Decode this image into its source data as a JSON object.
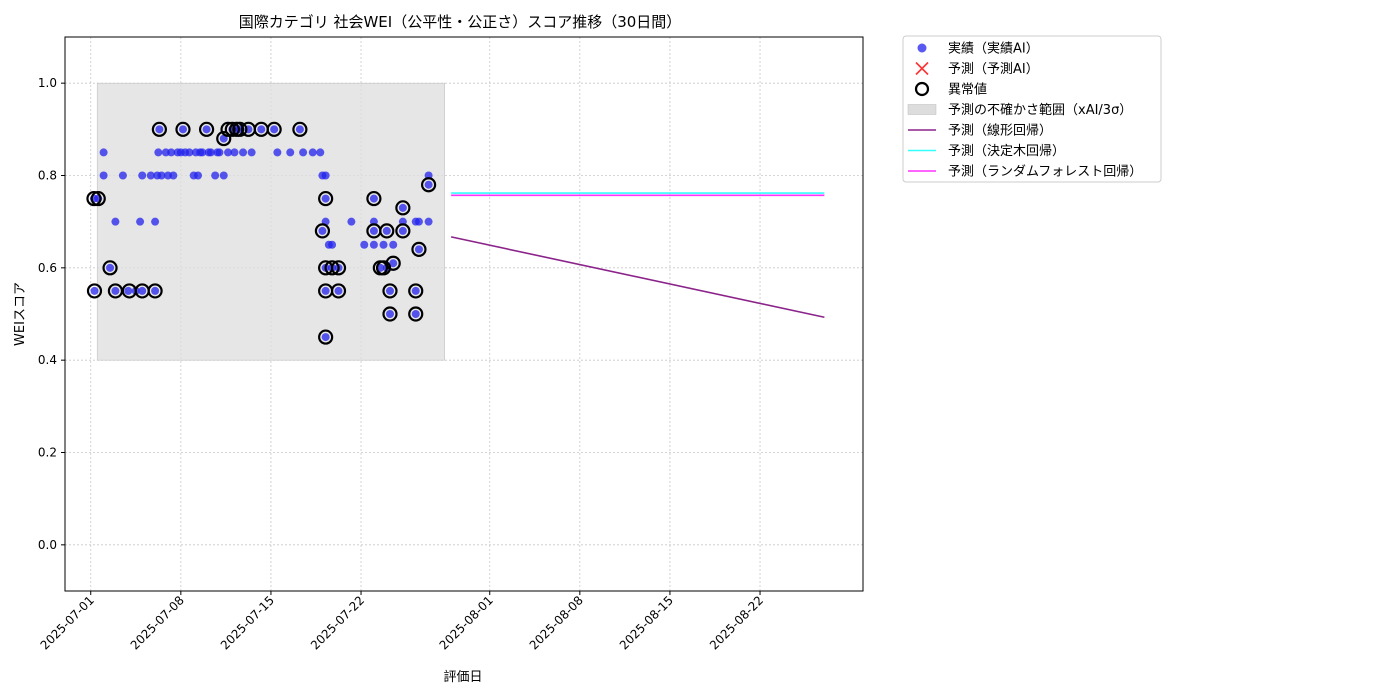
{
  "chart_data": {
    "type": "scatter",
    "title": "国際カテゴリ 社会WEI（公平性・公正さ）スコア推移（30日間）",
    "xlabel": "評価日",
    "ylabel": "WEIスコア",
    "xlim": [
      "2025-06-29",
      "2025-08-30"
    ],
    "ylim": [
      -0.1,
      1.1
    ],
    "grid": true,
    "legend_position": "outside-top-right",
    "x_ticks": [
      "2025-07-01",
      "2025-07-08",
      "2025-07-15",
      "2025-07-22",
      "2025-08-01",
      "2025-08-08",
      "2025-08-15",
      "2025-08-22"
    ],
    "y_ticks": [
      "0.0",
      "0.2",
      "0.4",
      "0.6",
      "0.8",
      "1.0"
    ],
    "uncertainty_band": {
      "x_start": "2025-07-01T12:00",
      "x_end": "2025-07-28T12:00",
      "y_low": 0.4,
      "y_high": 1.0,
      "color": "#dddddd"
    },
    "legend": [
      {
        "label": "実績（実績AI）",
        "kind": "dot",
        "color": "#2222ee"
      },
      {
        "label": "予測（予測AI）",
        "kind": "cross",
        "color": "#ff3333"
      },
      {
        "label": "異常値",
        "kind": "ring",
        "color": "#000000"
      },
      {
        "label": "予測の不確かさ範囲（xAI/3σ）",
        "kind": "band",
        "color": "#dddddd"
      },
      {
        "label": "予測（線形回帰）",
        "kind": "line",
        "color": "#8b238b"
      },
      {
        "label": "予測（決定木回帰）",
        "kind": "line",
        "color": "#33ffff"
      },
      {
        "label": "予測（ランダムフォレスト回帰）",
        "kind": "line",
        "color": "#ff33ff"
      }
    ],
    "actual_points": [
      [
        "2025-07-01T06:00",
        0.75
      ],
      [
        "2025-07-01T07:00",
        0.55
      ],
      [
        "2025-07-01T14:00",
        0.75
      ],
      [
        "2025-07-02T00:00",
        0.8
      ],
      [
        "2025-07-02T00:00",
        0.85
      ],
      [
        "2025-07-02T12:00",
        0.6
      ],
      [
        "2025-07-02T22:00",
        0.7
      ],
      [
        "2025-07-02T22:00",
        0.55
      ],
      [
        "2025-07-03T12:00",
        0.8
      ],
      [
        "2025-07-03T22:00",
        0.55
      ],
      [
        "2025-07-04T12:00",
        0.55
      ],
      [
        "2025-07-04T20:00",
        0.7
      ],
      [
        "2025-07-05T00:00",
        0.8
      ],
      [
        "2025-07-05T00:00",
        0.55
      ],
      [
        "2025-07-05T16:00",
        0.8
      ],
      [
        "2025-07-06T00:00",
        0.7
      ],
      [
        "2025-07-06T00:00",
        0.55
      ],
      [
        "2025-07-06T04:00",
        0.8
      ],
      [
        "2025-07-06T06:00",
        0.85
      ],
      [
        "2025-07-06T08:00",
        0.9
      ],
      [
        "2025-07-06T12:00",
        0.8
      ],
      [
        "2025-07-06T20:00",
        0.85
      ],
      [
        "2025-07-07T00:00",
        0.8
      ],
      [
        "2025-07-07T06:00",
        0.85
      ],
      [
        "2025-07-07T10:00",
        0.8
      ],
      [
        "2025-07-07T18:00",
        0.85
      ],
      [
        "2025-07-08T00:00",
        0.85
      ],
      [
        "2025-07-08T04:00",
        0.9
      ],
      [
        "2025-07-08T08:00",
        0.85
      ],
      [
        "2025-07-08T16:00",
        0.85
      ],
      [
        "2025-07-09T00:00",
        0.8
      ],
      [
        "2025-07-09T04:00",
        0.85
      ],
      [
        "2025-07-09T08:00",
        0.8
      ],
      [
        "2025-07-09T12:00",
        0.85
      ],
      [
        "2025-07-09T16:00",
        0.85
      ],
      [
        "2025-07-10T00:00",
        0.9
      ],
      [
        "2025-07-10T04:00",
        0.85
      ],
      [
        "2025-07-10T08:00",
        0.85
      ],
      [
        "2025-07-10T16:00",
        0.8
      ],
      [
        "2025-07-10T20:00",
        0.85
      ],
      [
        "2025-07-11T00:00",
        0.85
      ],
      [
        "2025-07-11T08:00",
        0.8
      ],
      [
        "2025-07-11T08:00",
        0.88
      ],
      [
        "2025-07-11T16:00",
        0.85
      ],
      [
        "2025-07-12T00:00",
        0.9
      ],
      [
        "2025-07-12T04:00",
        0.85
      ],
      [
        "2025-07-12T08:00",
        0.9
      ],
      [
        "2025-07-12T14:00",
        0.9
      ],
      [
        "2025-07-12T20:00",
        0.85
      ],
      [
        "2025-07-13T06:00",
        0.9
      ],
      [
        "2025-07-13T12:00",
        0.85
      ],
      [
        "2025-07-14T06:00",
        0.9
      ],
      [
        "2025-07-15T06:00",
        0.9
      ],
      [
        "2025-07-15T12:00",
        0.85
      ],
      [
        "2025-07-16T12:00",
        0.85
      ],
      [
        "2025-07-17T06:00",
        0.9
      ],
      [
        "2025-07-17T12:00",
        0.85
      ],
      [
        "2025-07-18T06:00",
        0.85
      ],
      [
        "2025-07-18T20:00",
        0.85
      ],
      [
        "2025-07-19T00:00",
        0.8
      ],
      [
        "2025-07-19T00:00",
        0.68
      ],
      [
        "2025-07-19T06:00",
        0.8
      ],
      [
        "2025-07-19T06:00",
        0.75
      ],
      [
        "2025-07-19T06:00",
        0.7
      ],
      [
        "2025-07-19T06:00",
        0.6
      ],
      [
        "2025-07-19T06:00",
        0.55
      ],
      [
        "2025-07-19T06:00",
        0.45
      ],
      [
        "2025-07-19T12:00",
        0.65
      ],
      [
        "2025-07-19T18:00",
        0.65
      ],
      [
        "2025-07-19T18:00",
        0.6
      ],
      [
        "2025-07-20T06:00",
        0.6
      ],
      [
        "2025-07-20T06:00",
        0.55
      ],
      [
        "2025-07-21T06:00",
        0.7
      ],
      [
        "2025-07-22T06:00",
        0.65
      ],
      [
        "2025-07-23T00:00",
        0.75
      ],
      [
        "2025-07-23T00:00",
        0.7
      ],
      [
        "2025-07-23T00:00",
        0.68
      ],
      [
        "2025-07-23T00:00",
        0.65
      ],
      [
        "2025-07-23T12:00",
        0.6
      ],
      [
        "2025-07-23T18:00",
        0.65
      ],
      [
        "2025-07-24T00:00",
        0.68
      ],
      [
        "2025-07-24T00:00",
        0.6
      ],
      [
        "2025-07-24T06:00",
        0.55
      ],
      [
        "2025-07-24T06:00",
        0.5
      ],
      [
        "2025-07-24T12:00",
        0.65
      ],
      [
        "2025-07-24T12:00",
        0.61
      ],
      [
        "2025-07-25T06:00",
        0.7
      ],
      [
        "2025-07-25T06:00",
        0.73
      ],
      [
        "2025-07-25T06:00",
        0.68
      ],
      [
        "2025-07-26T06:00",
        0.7
      ],
      [
        "2025-07-26T06:00",
        0.55
      ],
      [
        "2025-07-26T06:00",
        0.5
      ],
      [
        "2025-07-26T12:00",
        0.7
      ],
      [
        "2025-07-26T12:00",
        0.64
      ],
      [
        "2025-07-27T06:00",
        0.8
      ],
      [
        "2025-07-27T06:00",
        0.78
      ],
      [
        "2025-07-27T06:00",
        0.7
      ]
    ],
    "anomalies": [
      [
        "2025-07-01T06:00",
        0.75
      ],
      [
        "2025-07-01T07:00",
        0.55
      ],
      [
        "2025-07-01T14:00",
        0.75
      ],
      [
        "2025-07-02T12:00",
        0.6
      ],
      [
        "2025-07-02T22:00",
        0.55
      ],
      [
        "2025-07-04T00:00",
        0.55
      ],
      [
        "2025-07-05T00:00",
        0.55
      ],
      [
        "2025-07-06T00:00",
        0.55
      ],
      [
        "2025-07-06T08:00",
        0.9
      ],
      [
        "2025-07-08T04:00",
        0.9
      ],
      [
        "2025-07-10T00:00",
        0.9
      ],
      [
        "2025-07-11T08:00",
        0.88
      ],
      [
        "2025-07-11T16:00",
        0.9
      ],
      [
        "2025-07-12T00:00",
        0.9
      ],
      [
        "2025-07-12T08:00",
        0.9
      ],
      [
        "2025-07-12T14:00",
        0.9
      ],
      [
        "2025-07-13T06:00",
        0.9
      ],
      [
        "2025-07-14T06:00",
        0.9
      ],
      [
        "2025-07-15T06:00",
        0.9
      ],
      [
        "2025-07-17T06:00",
        0.9
      ],
      [
        "2025-07-19T00:00",
        0.68
      ],
      [
        "2025-07-19T06:00",
        0.75
      ],
      [
        "2025-07-19T06:00",
        0.6
      ],
      [
        "2025-07-19T06:00",
        0.55
      ],
      [
        "2025-07-19T06:00",
        0.45
      ],
      [
        "2025-07-19T18:00",
        0.6
      ],
      [
        "2025-07-20T06:00",
        0.6
      ],
      [
        "2025-07-20T06:00",
        0.55
      ],
      [
        "2025-07-23T00:00",
        0.75
      ],
      [
        "2025-07-23T00:00",
        0.68
      ],
      [
        "2025-07-23T12:00",
        0.6
      ],
      [
        "2025-07-23T18:00",
        0.6
      ],
      [
        "2025-07-24T00:00",
        0.68
      ],
      [
        "2025-07-24T06:00",
        0.55
      ],
      [
        "2025-07-24T06:00",
        0.5
      ],
      [
        "2025-07-24T12:00",
        0.61
      ],
      [
        "2025-07-25T06:00",
        0.73
      ],
      [
        "2025-07-25T06:00",
        0.68
      ],
      [
        "2025-07-26T06:00",
        0.55
      ],
      [
        "2025-07-26T06:00",
        0.5
      ],
      [
        "2025-07-26T12:00",
        0.64
      ],
      [
        "2025-07-27T06:00",
        0.78
      ]
    ],
    "forecast_lines": [
      {
        "name": "予測（線形回帰）",
        "color": "#8b238b",
        "x": [
          "2025-07-29",
          "2025-08-27"
        ],
        "y": [
          0.667,
          0.493
        ]
      },
      {
        "name": "予測（決定木回帰）",
        "color": "#33ffff",
        "x": [
          "2025-07-29",
          "2025-08-27"
        ],
        "y": [
          0.762,
          0.762
        ]
      },
      {
        "name": "予測（ランダムフォレスト回帰）",
        "color": "#ff33ff",
        "x": [
          "2025-07-29",
          "2025-08-27"
        ],
        "y": [
          0.757,
          0.757
        ]
      }
    ]
  }
}
